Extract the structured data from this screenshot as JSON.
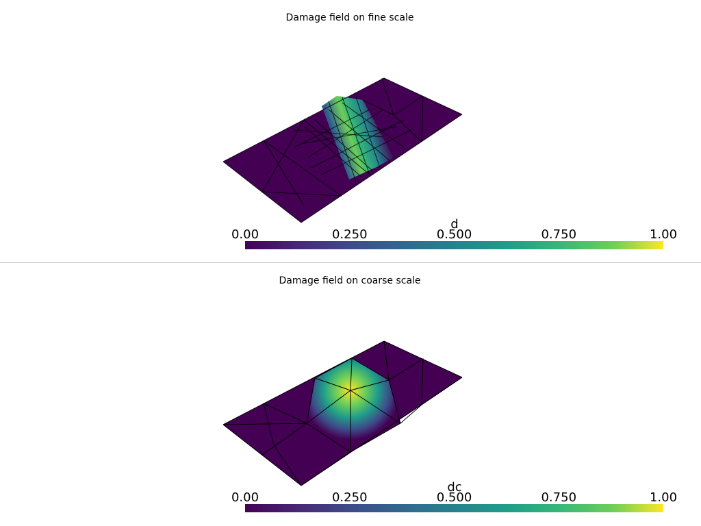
{
  "panels": [
    {
      "title": "Damage field on fine scale",
      "colorbar": {
        "label": "d",
        "ticks": [
          {
            "value": 0,
            "label": "0.00"
          },
          {
            "value": 0.25,
            "label": "0.250"
          },
          {
            "value": 0.5,
            "label": "0.500"
          },
          {
            "value": 0.75,
            "label": "0.750"
          },
          {
            "value": 1,
            "label": "1.00"
          }
        ]
      }
    },
    {
      "title": "Damage field on coarse scale",
      "colorbar": {
        "label": "dc",
        "ticks": [
          {
            "value": 0,
            "label": "0.00"
          },
          {
            "value": 0.25,
            "label": "0.250"
          },
          {
            "value": 0.5,
            "label": "0.500"
          },
          {
            "value": 0.75,
            "label": "0.750"
          },
          {
            "value": 1,
            "label": "1.00"
          }
        ]
      }
    }
  ]
}
